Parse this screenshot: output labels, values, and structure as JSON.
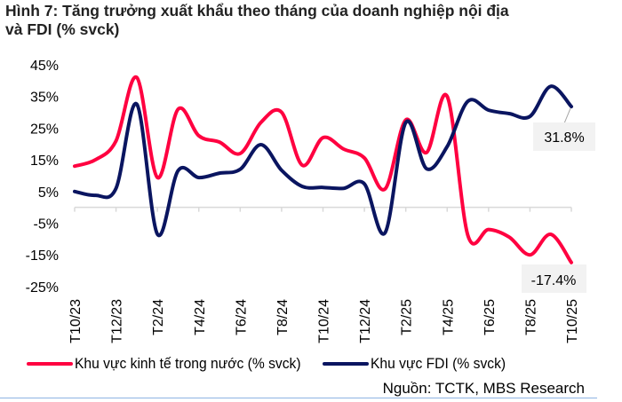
{
  "title": {
    "line1": "Hình 7: Tăng trưởng xuất khẩu theo tháng của doanh nghiệp nội địa",
    "line2": "và FDI (% svck)"
  },
  "colors": {
    "domestic": "#ff0040",
    "fdi": "#0a1560",
    "axis": "#d9d9d9",
    "label_box": "#f2f2f2",
    "bottom_rule": "#8eb4e3"
  },
  "legend": {
    "domestic_label": "Khu vực kinh tế trong nước (% svck)",
    "fdi_label": "Khu vực FDI (% svck)"
  },
  "source": "Nguồn: TCTK, MBS Research",
  "data_labels": {
    "fdi_last": "31.8%",
    "domestic_last": "-17.4%"
  },
  "chart_data": {
    "type": "line",
    "title": "Hình 7: Tăng trưởng xuất khẩu theo tháng của doanh nghiệp nội địa và FDI (% svck)",
    "xlabel": "",
    "ylabel": "% svck",
    "ylim": [
      -25,
      45
    ],
    "yticks": [
      "45%",
      "35%",
      "25%",
      "15%",
      "5%",
      "-5%",
      "-15%",
      "-25%"
    ],
    "ytick_values": [
      45,
      35,
      25,
      15,
      5,
      -5,
      -15,
      -25
    ],
    "grid": false,
    "legend_position": "bottom",
    "x": [
      "T10/23",
      "T11/23",
      "T12/23",
      "T1/24",
      "T2/24",
      "T3/24",
      "T4/24",
      "T5/24",
      "T6/24",
      "T7/24",
      "T8/24",
      "T9/24",
      "T10/24",
      "T11/24",
      "T12/24",
      "T1/25",
      "T2/25",
      "T3/25",
      "T4/25",
      "T5/25",
      "T6/25",
      "T7/25",
      "T8/25",
      "T9/25",
      "T10/25"
    ],
    "xtick_labels": [
      "T10/23",
      "T12/23",
      "T2/24",
      "T4/24",
      "T6/24",
      "T8/24",
      "T10/24",
      "T12/24",
      "T2/25",
      "T4/25",
      "T6/25",
      "T8/25",
      "T10/25"
    ],
    "series": [
      {
        "name": "Khu vực kinh tế trong nước (% svck)",
        "color": "#ff0040",
        "values": [
          13.0,
          15.0,
          21.0,
          41.0,
          9.4,
          31.0,
          22.6,
          20.6,
          17.0,
          26.8,
          30.0,
          13.3,
          22.0,
          18.4,
          15.6,
          5.8,
          27.6,
          17.3,
          35.0,
          -8.8,
          -7.0,
          -9.4,
          -15.0,
          -8.5,
          -17.4
        ],
        "end_label": "-17.4%"
      },
      {
        "name": "Khu vực FDI (% svck)",
        "color": "#0a1560",
        "values": [
          5.0,
          3.8,
          6.0,
          32.6,
          -8.5,
          11.6,
          9.4,
          10.8,
          12.0,
          19.8,
          11.7,
          6.6,
          6.3,
          6.0,
          7.4,
          -8.0,
          26.8,
          12.2,
          19.2,
          33.5,
          30.7,
          29.6,
          28.7,
          38.2,
          31.8
        ],
        "end_label": "31.8%"
      }
    ]
  }
}
